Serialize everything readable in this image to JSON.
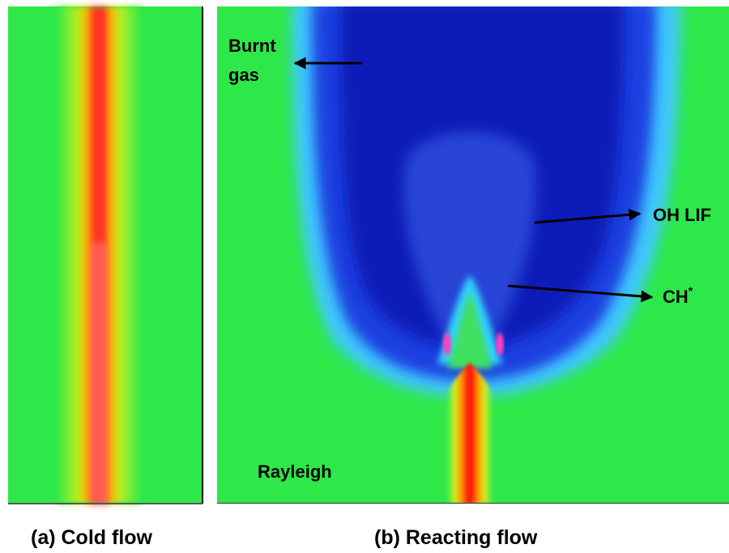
{
  "panels": [
    {
      "caption": "(a) Cold flow"
    },
    {
      "caption": "(b) Reacting flow",
      "annotations": {
        "burnt_gas": [
          "Burnt",
          "gas"
        ],
        "oh_lif": "OH LIF",
        "ch": {
          "text": "CH",
          "sup": "*"
        },
        "rayleigh": "Rayleigh"
      }
    }
  ]
}
